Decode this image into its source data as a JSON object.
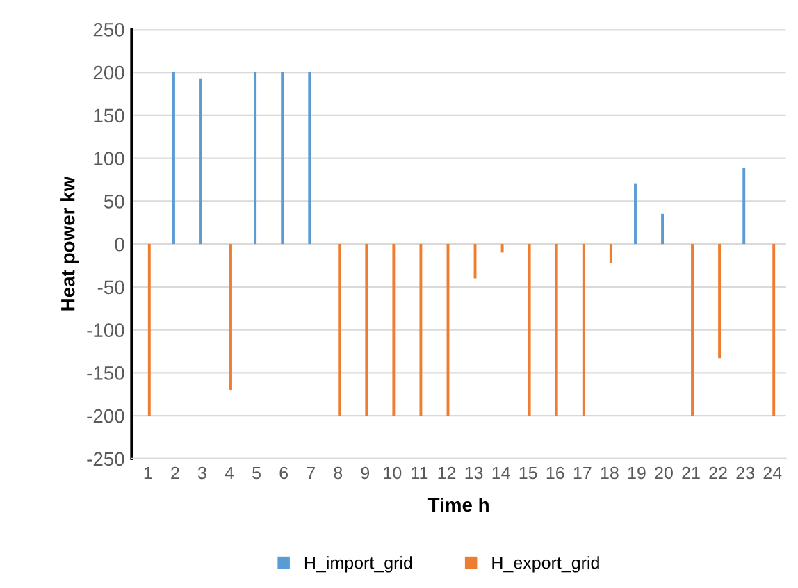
{
  "chart_data": {
    "type": "bar",
    "xlabel": "Time h",
    "ylabel": "Heat power kw",
    "categories": [
      "1",
      "2",
      "3",
      "4",
      "5",
      "6",
      "7",
      "8",
      "9",
      "10",
      "11",
      "12",
      "13",
      "14",
      "15",
      "16",
      "17",
      "18",
      "19",
      "20",
      "21",
      "22",
      "23",
      "24"
    ],
    "series": [
      {
        "name": "H_import_grid",
        "color": "#5b9bd5",
        "values": [
          0,
          200,
          193,
          0,
          200,
          200,
          200,
          0,
          0,
          0,
          0,
          0,
          0,
          0,
          0,
          0,
          0,
          0,
          70,
          35,
          0,
          0,
          89,
          0
        ]
      },
      {
        "name": "H_export_grid",
        "color": "#ed7d31",
        "values": [
          -200,
          0,
          0,
          -170,
          0,
          0,
          0,
          -200,
          -200,
          -200,
          -200,
          -200,
          -40,
          -10,
          -200,
          -200,
          -200,
          -22,
          0,
          0,
          -200,
          -133,
          0,
          -200
        ]
      }
    ],
    "ylim": [
      -250,
      250
    ],
    "yticks": [
      -250,
      -200,
      -150,
      -100,
      -50,
      0,
      50,
      100,
      150,
      200,
      250
    ],
    "grid": "y",
    "legend": "bottom"
  }
}
